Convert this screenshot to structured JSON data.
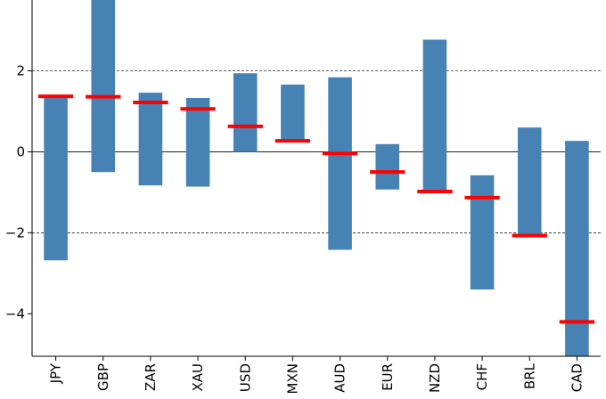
{
  "chart_data": {
    "type": "bar",
    "categories": [
      "JPY",
      "GBP",
      "ZAR",
      "XAU",
      "USD",
      "MXN",
      "AUD",
      "EUR",
      "NZD",
      "CHF",
      "BRL",
      "CAD"
    ],
    "ranges": [
      {
        "low": -2.68,
        "high": 1.4
      },
      {
        "low": -0.5,
        "high": 3.8
      },
      {
        "low": -0.83,
        "high": 1.46
      },
      {
        "low": -0.86,
        "high": 1.33
      },
      {
        "low": 0.0,
        "high": 1.94
      },
      {
        "low": 0.27,
        "high": 1.66
      },
      {
        "low": -2.42,
        "high": 1.84
      },
      {
        "low": -0.93,
        "high": 0.19
      },
      {
        "low": -1.02,
        "high": 2.77
      },
      {
        "low": -3.4,
        "high": -0.58
      },
      {
        "low": -2.06,
        "high": 0.6
      },
      {
        "low": -5.05,
        "high": 0.27
      }
    ],
    "markers": [
      1.37,
      1.36,
      1.22,
      1.06,
      0.63,
      0.27,
      -0.04,
      -0.5,
      -0.98,
      -1.13,
      -2.07,
      -4.2
    ],
    "yticks": [
      -4,
      -2,
      0,
      2
    ],
    "ylim": [
      -5.05,
      3.75
    ],
    "grid_lines": [
      -2,
      2
    ],
    "zero_line": 0,
    "title": "",
    "xlabel": "",
    "ylabel": "",
    "colors": {
      "bar": "#4682b4",
      "marker": "#ff0000",
      "axis": "#000000"
    }
  }
}
